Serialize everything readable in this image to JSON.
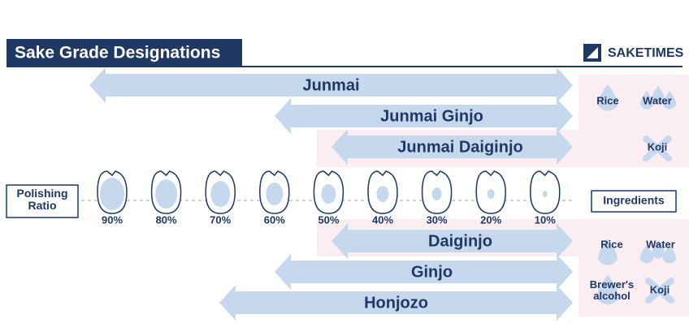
{
  "header": {
    "title": "Sake Grade Designations",
    "brand": "SAKETIMES"
  },
  "grades_junmai": [
    "Junmai",
    "Junmai Ginjo",
    "Junmai Daiginjo"
  ],
  "grades_other": [
    "Daiginjo",
    "Ginjo",
    "Honjozo"
  ],
  "polishing_label": "Polishing Ratio",
  "ratios": [
    "90%",
    "80%",
    "70%",
    "60%",
    "50%",
    "40%",
    "30%",
    "20%",
    "10%"
  ],
  "ingredients": {
    "label": "Ingredients",
    "top": [
      "Rice",
      "Water",
      "Koji"
    ],
    "bottom": [
      "Rice",
      "Water",
      "Brewer's alcohol",
      "Koji"
    ]
  }
}
